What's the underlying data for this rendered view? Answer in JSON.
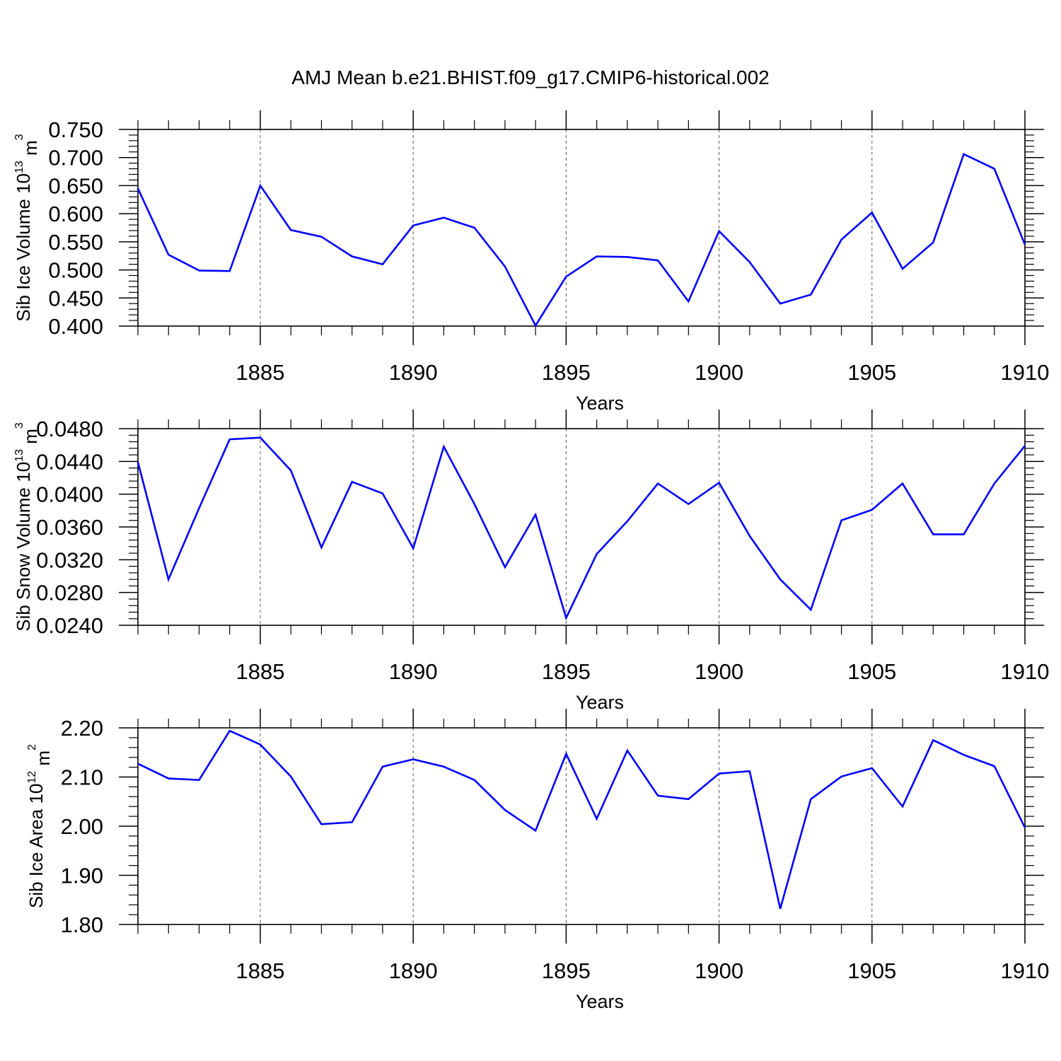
{
  "figure": {
    "title": "AMJ Mean b.e21.BHIST.f09_g17.CMIP6-historical.002"
  },
  "colors": {
    "line": "#0000ff",
    "axis": "#000000",
    "grid": "#555555"
  },
  "chart_data": [
    {
      "type": "line",
      "ylabel_main": "Sib Ice Volume 10",
      "ylabel_exp": "13",
      "ylabel_unit": " m",
      "ylabel_unit_exp": "3",
      "xlabel": "Years",
      "xlim": [
        1881,
        1910
      ],
      "ylim": [
        0.4,
        0.75
      ],
      "yticks": [
        0.4,
        0.45,
        0.5,
        0.55,
        0.6,
        0.65,
        0.7,
        0.75
      ],
      "ytick_labels": [
        "0.400",
        "0.450",
        "0.500",
        "0.550",
        "0.600",
        "0.650",
        "0.700",
        "0.750"
      ],
      "xticks": [
        1885,
        1890,
        1895,
        1900,
        1905,
        1910
      ],
      "xtick_labels": [
        "1885",
        "1890",
        "1895",
        "1900",
        "1905",
        "1910"
      ],
      "series": [
        {
          "name": "Sib Ice Volume",
          "x": [
            1881,
            1882,
            1883,
            1884,
            1885,
            1886,
            1887,
            1888,
            1889,
            1890,
            1891,
            1892,
            1893,
            1894,
            1895,
            1896,
            1897,
            1898,
            1899,
            1900,
            1901,
            1902,
            1903,
            1904,
            1905,
            1906,
            1907,
            1908,
            1909,
            1910
          ],
          "values": [
            0.645,
            0.527,
            0.499,
            0.498,
            0.65,
            0.571,
            0.559,
            0.524,
            0.51,
            0.579,
            0.593,
            0.575,
            0.506,
            0.401,
            0.488,
            0.524,
            0.523,
            0.517,
            0.444,
            0.569,
            0.514,
            0.44,
            0.456,
            0.554,
            0.602,
            0.502,
            0.549,
            0.706,
            0.68,
            0.545
          ]
        }
      ]
    },
    {
      "type": "line",
      "ylabel_main": "Sib Snow Volume 10",
      "ylabel_exp": "13",
      "ylabel_unit": " m",
      "ylabel_unit_exp": "3",
      "xlabel": "Years",
      "xlim": [
        1881,
        1910
      ],
      "ylim": [
        0.024,
        0.048
      ],
      "yticks": [
        0.024,
        0.028,
        0.032,
        0.036,
        0.04,
        0.044,
        0.048
      ],
      "ytick_labels": [
        "0.0240",
        "0.0280",
        "0.0320",
        "0.0360",
        "0.0400",
        "0.0440",
        "0.0480"
      ],
      "xticks": [
        1885,
        1890,
        1895,
        1900,
        1905,
        1910
      ],
      "xtick_labels": [
        "1885",
        "1890",
        "1895",
        "1900",
        "1905",
        "1910"
      ],
      "series": [
        {
          "name": "Sib Snow Volume",
          "x": [
            1881,
            1882,
            1883,
            1884,
            1885,
            1886,
            1887,
            1888,
            1889,
            1890,
            1891,
            1892,
            1893,
            1894,
            1895,
            1896,
            1897,
            1898,
            1899,
            1900,
            1901,
            1902,
            1903,
            1904,
            1905,
            1906,
            1907,
            1908,
            1909,
            1910
          ],
          "values": [
            0.0439,
            0.0296,
            0.0383,
            0.0467,
            0.0469,
            0.0429,
            0.0335,
            0.0415,
            0.0401,
            0.0334,
            0.0458,
            0.0388,
            0.0311,
            0.0375,
            0.0249,
            0.0327,
            0.0367,
            0.0413,
            0.0388,
            0.0414,
            0.0349,
            0.0296,
            0.0259,
            0.0368,
            0.0381,
            0.0413,
            0.0351,
            0.0351,
            0.0413,
            0.0459
          ]
        }
      ]
    },
    {
      "type": "line",
      "ylabel_main": "Sib Ice Area 10",
      "ylabel_exp": "12",
      "ylabel_unit": " m",
      "ylabel_unit_exp": "2",
      "xlabel": "Years",
      "xlim": [
        1881,
        1910
      ],
      "ylim": [
        1.8,
        2.2
      ],
      "yticks": [
        1.8,
        1.9,
        2.0,
        2.1,
        2.2
      ],
      "ytick_labels": [
        "1.80",
        "1.90",
        "2.00",
        "2.10",
        "2.20"
      ],
      "xticks": [
        1885,
        1890,
        1895,
        1900,
        1905,
        1910
      ],
      "xtick_labels": [
        "1885",
        "1890",
        "1895",
        "1900",
        "1905",
        "1910"
      ],
      "series": [
        {
          "name": "Sib Ice Area",
          "x": [
            1881,
            1882,
            1883,
            1884,
            1885,
            1886,
            1887,
            1888,
            1889,
            1890,
            1891,
            1892,
            1893,
            1894,
            1895,
            1896,
            1897,
            1898,
            1899,
            1900,
            1901,
            1902,
            1903,
            1904,
            1905,
            1906,
            1907,
            1908,
            1909,
            1910
          ],
          "values": [
            2.127,
            2.097,
            2.094,
            2.194,
            2.166,
            2.101,
            2.004,
            2.008,
            2.121,
            2.136,
            2.121,
            2.094,
            2.033,
            1.991,
            2.147,
            2.015,
            2.154,
            2.062,
            2.055,
            2.107,
            2.112,
            1.832,
            2.055,
            2.101,
            2.118,
            2.04,
            2.175,
            2.145,
            2.122,
            1.997
          ]
        }
      ]
    }
  ]
}
